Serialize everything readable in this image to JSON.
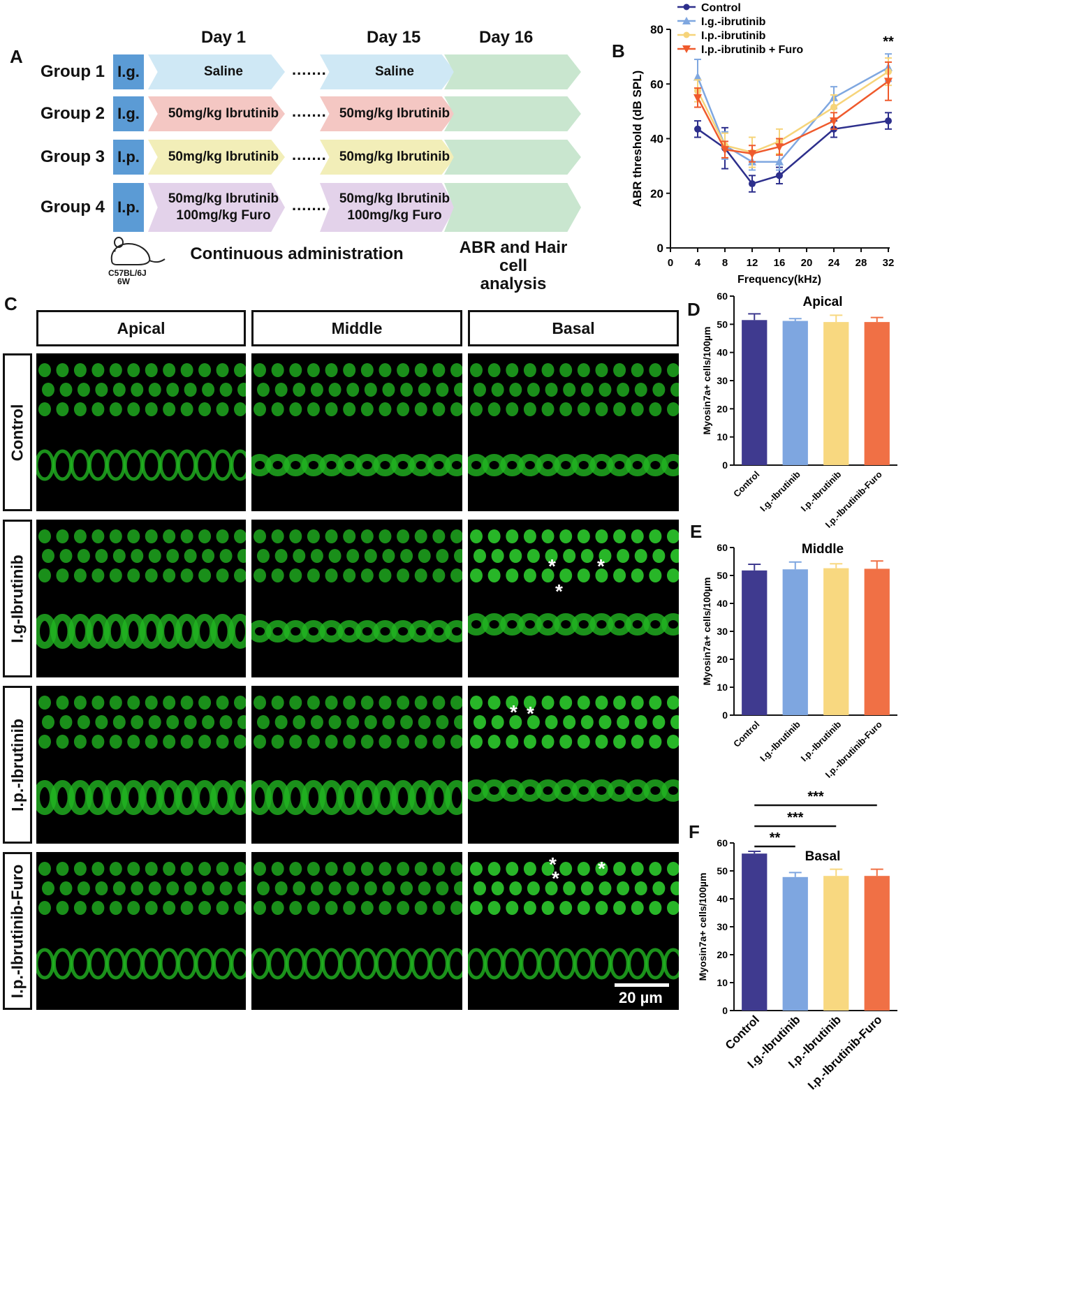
{
  "panel_labels": {
    "a": "A",
    "b": "B",
    "c": "C",
    "d": "D",
    "e": "E",
    "f": "F"
  },
  "panel_a": {
    "days": [
      "Day 1",
      "Day 15",
      "Day 16"
    ],
    "groups": [
      {
        "label": "Group 1",
        "route": "I.g.",
        "day1": "Saline",
        "day15": "Saline",
        "color": "#cfe8f5"
      },
      {
        "label": "Group 2",
        "route": "I.g.",
        "day1": "50mg/kg Ibrutinib",
        "day15": "50mg/kg Ibrutinib",
        "color": "#f4c7c3"
      },
      {
        "label": "Group 3",
        "route": "I.p.",
        "day1": "50mg/kg Ibrutinib",
        "day15": "50mg/kg Ibrutinib",
        "color": "#f2eeb8"
      },
      {
        "label": "Group 4",
        "route": "I.p.",
        "day1": "50mg/kg Ibrutinib\n100mg/kg Furo",
        "day15": "50mg/kg Ibrutinib\n100mg/kg Furo",
        "color": "#e3d2ea"
      }
    ],
    "dots": ".......",
    "day16_color": "#c9e6cf",
    "mouse_strain": "C57BL/6J",
    "mouse_age": "6W",
    "continuous_label": "Continuous administration",
    "analysis_label": "ABR and Hair cell\nanalysis"
  },
  "panel_c": {
    "columns": [
      "Apical",
      "Middle",
      "Basal"
    ],
    "rows": [
      "Control",
      "I.g-Ibrutinib",
      "I.p.-Ibrutinib",
      "I.p.-Ibrutinib-Furo"
    ],
    "scale_bar": "20 µm",
    "star": "*"
  },
  "chart_data": [
    {
      "type": "line",
      "panel": "B",
      "xlabel": "Frequency(kHz)",
      "ylabel": "ABR threshold (dB SPL)",
      "xlim": [
        0,
        32
      ],
      "ylim": [
        0,
        80
      ],
      "xticks": [
        0,
        4,
        8,
        12,
        16,
        20,
        24,
        28,
        32
      ],
      "yticks": [
        0,
        20,
        40,
        60,
        80
      ],
      "x": [
        4,
        8,
        12,
        16,
        24,
        32
      ],
      "annotation": {
        "x": 32,
        "text": "**"
      },
      "legend_position": "top-left",
      "series": [
        {
          "name": "Control",
          "color": "#2d2f8c",
          "marker": "circle",
          "values": [
            43.5,
            36.5,
            23.5,
            26.5,
            43.5,
            46.5
          ],
          "errors": [
            3,
            7.5,
            3,
            3,
            3,
            3
          ]
        },
        {
          "name": "I.g.-ibrutinib",
          "color": "#7fa7e0",
          "marker": "triangle-up",
          "values": [
            62.5,
            37.5,
            31.5,
            31.5,
            55,
            66
          ],
          "errors": [
            6.5,
            5,
            3,
            3,
            4,
            5
          ]
        },
        {
          "name": "I.p.-ibrutinib",
          "color": "#f6d47a",
          "marker": "circle",
          "values": [
            57.5,
            37.5,
            35,
            39,
            51.5,
            64.5
          ],
          "errors": [
            4,
            4.5,
            5.5,
            4.5,
            4.5,
            5
          ]
        },
        {
          "name": "I.p.-ibrutinib + Furo",
          "color": "#ef5a2c",
          "marker": "triangle-down",
          "values": [
            55,
            36,
            34.5,
            37,
            46.5,
            61
          ],
          "errors": [
            3.5,
            3,
            3,
            3,
            3,
            7
          ]
        }
      ]
    },
    {
      "type": "bar",
      "panel": "D",
      "title": "Apical",
      "ylabel": "Myosin7a+ cells/100µm",
      "categories": [
        "Control",
        "I.g.-Ibrutinib",
        "I.p.-Ibrutinib",
        "I.p.-Ibrutinib-Furo"
      ],
      "values": [
        51.5,
        51.2,
        50.8,
        50.8
      ],
      "errors": [
        2.2,
        0.8,
        2.4,
        1.6
      ],
      "colors": [
        "#3f3a8f",
        "#7ea6e0",
        "#f8d880",
        "#f07045"
      ],
      "ylim": [
        0,
        60
      ],
      "yticks": [
        0,
        10,
        20,
        30,
        40,
        50,
        60
      ]
    },
    {
      "type": "bar",
      "panel": "E",
      "title": "Middle",
      "ylabel": "Myosin7a+ cells/100µm",
      "categories": [
        "Control",
        "I.g.-Ibrutinib",
        "I.p.-Ibrutinib",
        "I.p.-Ibrutinib-Furo"
      ],
      "values": [
        51.8,
        52.2,
        52.6,
        52.4
      ],
      "errors": [
        2.2,
        2.6,
        1.6,
        2.8
      ],
      "colors": [
        "#3f3a8f",
        "#7ea6e0",
        "#f8d880",
        "#f07045"
      ],
      "ylim": [
        0,
        60
      ],
      "yticks": [
        0,
        10,
        20,
        30,
        40,
        50,
        60
      ]
    },
    {
      "type": "bar",
      "panel": "F",
      "title": "Basal",
      "ylabel": "Myosin7a+ cells/100µm",
      "categories": [
        "Control",
        "I.g.-Ibrutinib",
        "I.p.-Ibrutinib",
        "I.p.-Ibrutinib-Furo"
      ],
      "values": [
        56.2,
        47.8,
        48.2,
        48.2
      ],
      "errors": [
        0.8,
        1.6,
        2.4,
        2.4
      ],
      "colors": [
        "#3f3a8f",
        "#7ea6e0",
        "#f8d880",
        "#f07045"
      ],
      "ylim": [
        0,
        60
      ],
      "yticks": [
        0,
        10,
        20,
        30,
        40,
        50,
        60
      ],
      "significance": [
        {
          "from": 0,
          "to": 1,
          "text": "**"
        },
        {
          "from": 0,
          "to": 2,
          "text": "***"
        },
        {
          "from": 0,
          "to": 3,
          "text": "***"
        }
      ]
    }
  ]
}
